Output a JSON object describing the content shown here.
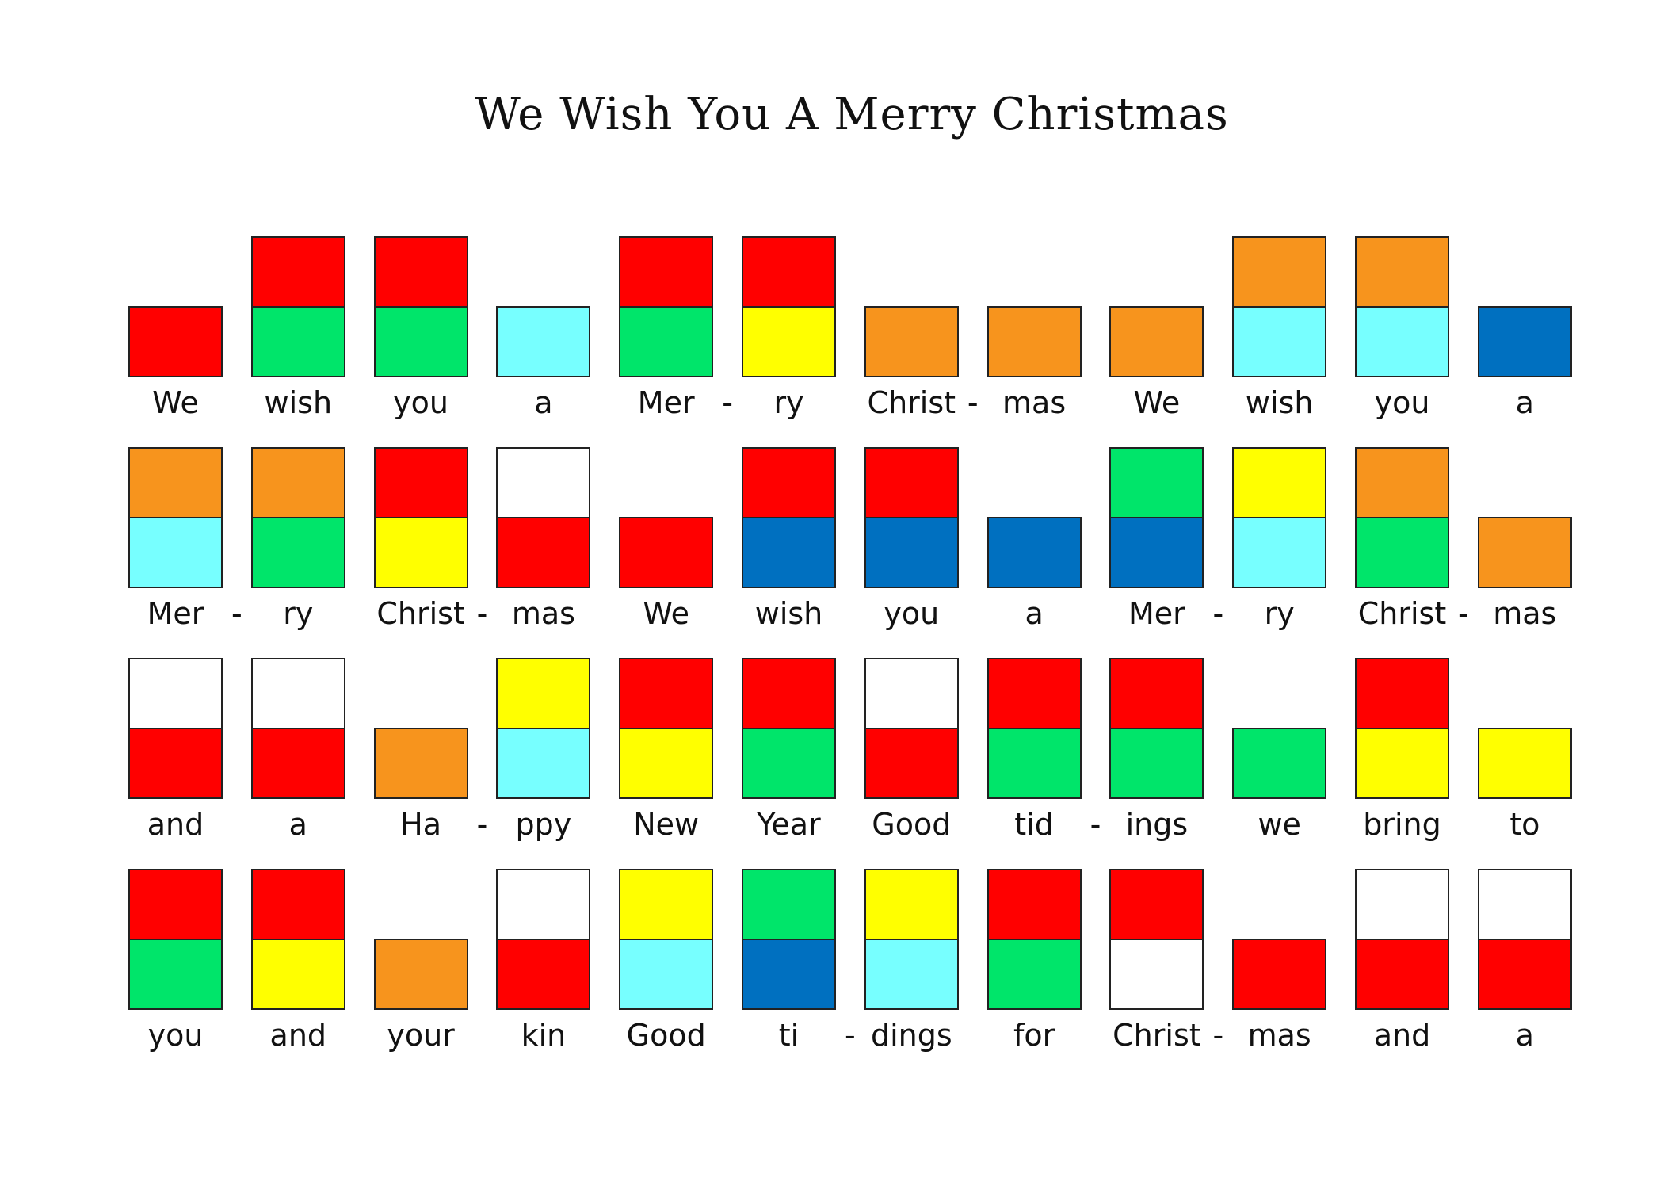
{
  "title": "We Wish You A Merry Christmas",
  "palette": {
    "red": "#ff0000",
    "green": "#00e56a",
    "cyan": "#77ffff",
    "blue": "#0070c0",
    "orange": "#f7941d",
    "yellow": "#ffff00",
    "white": "#ffffff"
  },
  "rows": [
    [
      {
        "label": "We",
        "top": null,
        "bottom": "red"
      },
      {
        "label": "wish",
        "top": "red",
        "bottom": "green"
      },
      {
        "label": "you",
        "top": "red",
        "bottom": "green"
      },
      {
        "label": "a",
        "top": null,
        "bottom": "cyan"
      },
      {
        "label": "Mer",
        "top": "red",
        "bottom": "green",
        "dash": "-"
      },
      {
        "label": "ry",
        "top": "red",
        "bottom": "yellow"
      },
      {
        "label": "Christ",
        "top": null,
        "bottom": "orange",
        "dash": "-"
      },
      {
        "label": "mas",
        "top": null,
        "bottom": "orange"
      },
      {
        "label": "We",
        "top": null,
        "bottom": "orange"
      },
      {
        "label": "wish",
        "top": "orange",
        "bottom": "cyan"
      },
      {
        "label": "you",
        "top": "orange",
        "bottom": "cyan"
      },
      {
        "label": "a",
        "top": null,
        "bottom": "blue"
      }
    ],
    [
      {
        "label": "Mer",
        "top": "orange",
        "bottom": "cyan",
        "dash": "-"
      },
      {
        "label": "ry",
        "top": "orange",
        "bottom": "green"
      },
      {
        "label": "Christ",
        "top": "red",
        "bottom": "yellow",
        "dash": "-"
      },
      {
        "label": "mas",
        "top": "white",
        "bottom": "red"
      },
      {
        "label": "We",
        "top": null,
        "bottom": "red"
      },
      {
        "label": "wish",
        "top": "red",
        "bottom": "blue"
      },
      {
        "label": "you",
        "top": "red",
        "bottom": "blue"
      },
      {
        "label": "a",
        "top": null,
        "bottom": "blue"
      },
      {
        "label": "Mer",
        "top": "green",
        "bottom": "blue",
        "dash": "-"
      },
      {
        "label": "ry",
        "top": "yellow",
        "bottom": "cyan"
      },
      {
        "label": "Christ",
        "top": "orange",
        "bottom": "green",
        "dash": "-"
      },
      {
        "label": "mas",
        "top": null,
        "bottom": "orange"
      }
    ],
    [
      {
        "label": "and",
        "top": "white",
        "bottom": "red"
      },
      {
        "label": "a",
        "top": "white",
        "bottom": "red"
      },
      {
        "label": "Ha",
        "top": null,
        "bottom": "orange",
        "dash": "-"
      },
      {
        "label": "ppy",
        "top": "yellow",
        "bottom": "cyan"
      },
      {
        "label": "New",
        "top": "red",
        "bottom": "yellow"
      },
      {
        "label": "Year",
        "top": "red",
        "bottom": "green"
      },
      {
        "label": "Good",
        "top": "white",
        "bottom": "red"
      },
      {
        "label": "tid",
        "top": "red",
        "bottom": "green",
        "dash": "-"
      },
      {
        "label": "ings",
        "top": "red",
        "bottom": "green"
      },
      {
        "label": "we",
        "top": null,
        "bottom": "green"
      },
      {
        "label": "bring",
        "top": "red",
        "bottom": "yellow"
      },
      {
        "label": "to",
        "top": null,
        "bottom": "yellow"
      }
    ],
    [
      {
        "label": "you",
        "top": "red",
        "bottom": "green"
      },
      {
        "label": "and",
        "top": "red",
        "bottom": "yellow"
      },
      {
        "label": "your",
        "top": null,
        "bottom": "orange"
      },
      {
        "label": "kin",
        "top": "white",
        "bottom": "red"
      },
      {
        "label": "Good",
        "top": "yellow",
        "bottom": "cyan"
      },
      {
        "label": "ti",
        "top": "green",
        "bottom": "blue",
        "dash": "-"
      },
      {
        "label": "dings",
        "top": "yellow",
        "bottom": "cyan"
      },
      {
        "label": "for",
        "top": "red",
        "bottom": "green"
      },
      {
        "label": "Christ",
        "top": "red",
        "bottom": "white",
        "dash": "-"
      },
      {
        "label": "mas",
        "top": null,
        "bottom": "red"
      },
      {
        "label": "and",
        "top": "white",
        "bottom": "red"
      },
      {
        "label": "a",
        "top": "white",
        "bottom": "red"
      }
    ]
  ]
}
